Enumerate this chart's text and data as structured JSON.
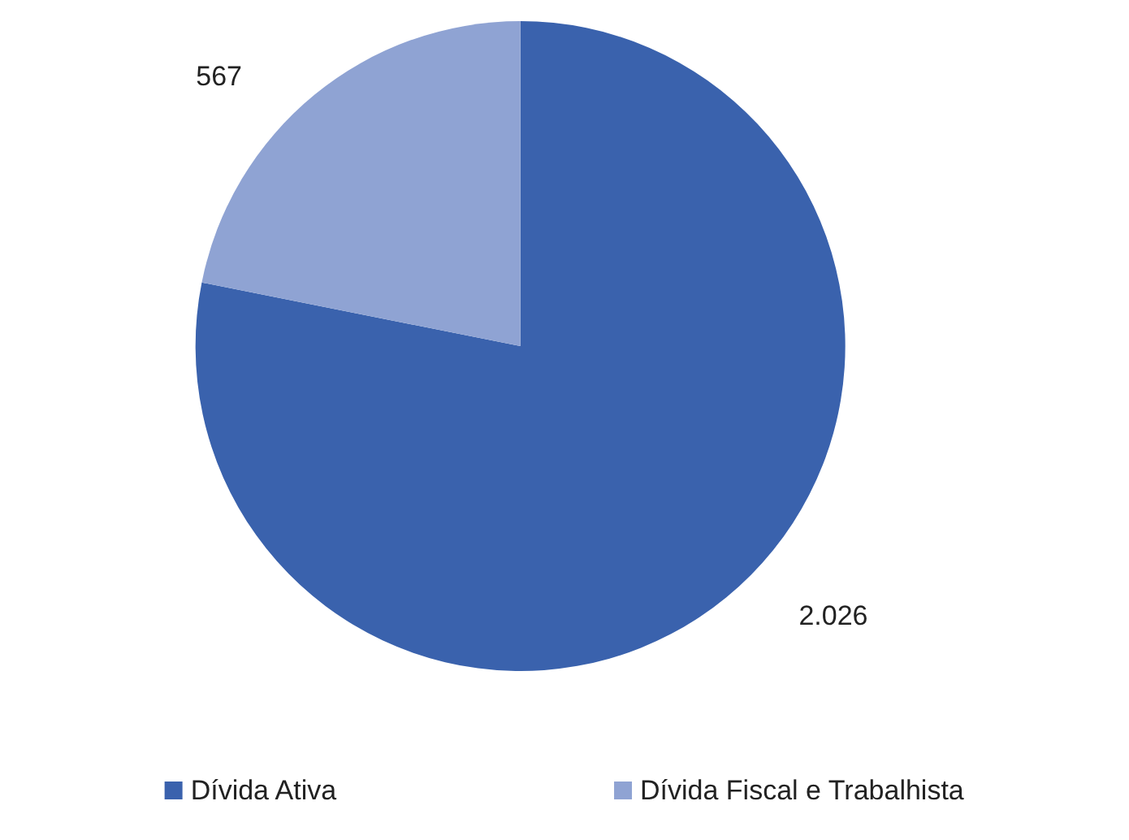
{
  "chart_data": {
    "type": "pie",
    "categories": [
      "Dívida Ativa",
      "Dívida Fiscal e Trabalhista"
    ],
    "values": [
      2026,
      567
    ],
    "value_labels": [
      "2.026",
      "567"
    ],
    "colors": [
      "#3a62ad",
      "#8fa3d3"
    ],
    "legend": "bottom"
  }
}
